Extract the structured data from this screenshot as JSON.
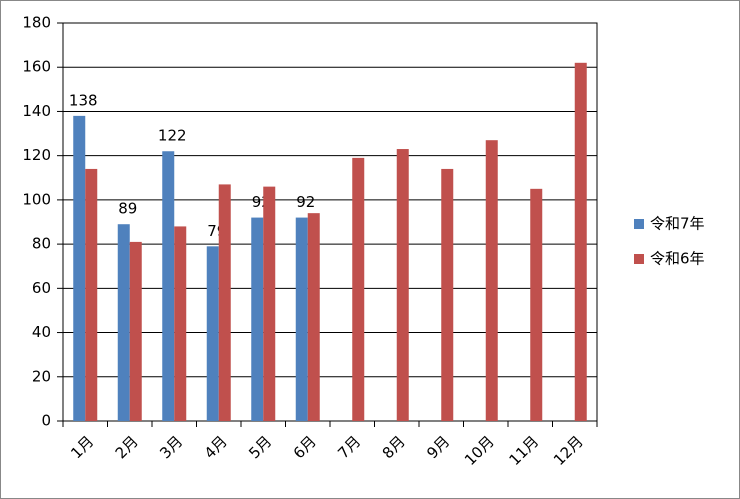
{
  "chart_data": {
    "type": "bar",
    "categories": [
      "1月",
      "2月",
      "3月",
      "4月",
      "5月",
      "6月",
      "7月",
      "8月",
      "9月",
      "10月",
      "11月",
      "12月"
    ],
    "series": [
      {
        "name": "令和7年",
        "color": "#4f81bd",
        "values": [
          138,
          89,
          122,
          79,
          92,
          92,
          null,
          null,
          null,
          null,
          null,
          null
        ],
        "data_labels": true
      },
      {
        "name": "令和6年",
        "color": "#c0504d",
        "values": [
          114,
          81,
          88,
          107,
          106,
          94,
          119,
          123,
          114,
          127,
          105,
          162
        ],
        "data_labels": false
      }
    ],
    "ylim": [
      0,
      180
    ],
    "yticks": [
      0,
      20,
      40,
      60,
      80,
      100,
      120,
      140,
      160,
      180
    ],
    "grid": true,
    "legend": "right"
  }
}
